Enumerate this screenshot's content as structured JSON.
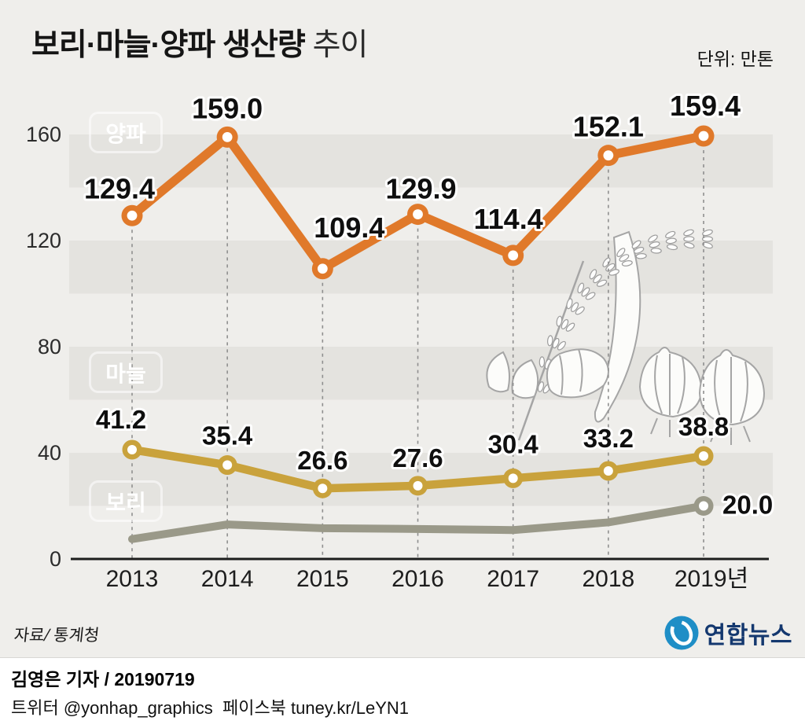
{
  "title": {
    "main": "보리·마늘·양파 생산량",
    "sub": " 추이"
  },
  "meta": {
    "unit_label": "단위: 만톤",
    "source": "자료/ 통계청"
  },
  "chart_data": {
    "type": "line",
    "x": [
      2013,
      2014,
      2015,
      2016,
      2017,
      2018,
      2019
    ],
    "x_tick_labels": [
      "2013",
      "2014",
      "2015",
      "2016",
      "2017",
      "2018",
      "2019년"
    ],
    "y_ticks": [
      0,
      40,
      80,
      120,
      160
    ],
    "ylim": [
      0,
      175
    ],
    "grid": "dashed vertical line per year; alternating horizontal 20-unit background bands",
    "legend_position": "colored chips at left, one beside each series",
    "series": [
      {
        "name": "양파",
        "color": "#E0792A",
        "values": [
          129.4,
          159.0,
          109.4,
          129.9,
          114.4,
          152.1,
          159.4
        ],
        "value_labels": [
          "129.4",
          "159.0",
          "109.4",
          "129.9",
          "114.4",
          "152.1",
          "159.4"
        ],
        "label_dx": [
          -16,
          0,
          34,
          4,
          -6,
          0,
          2
        ],
        "label_dy": [
          -22,
          -24,
          -40,
          -20,
          -34,
          -24,
          -26
        ]
      },
      {
        "name": "마늘",
        "color": "#C9A23C",
        "values": [
          41.2,
          35.4,
          26.6,
          27.6,
          30.4,
          33.2,
          38.8
        ],
        "value_labels": [
          "41.2",
          "35.4",
          "26.6",
          "27.6",
          "30.4",
          "33.2",
          "38.8"
        ],
        "label_dx": [
          -14,
          0,
          0,
          0,
          0,
          0,
          0
        ],
        "label_dy": [
          -27,
          -26,
          -24,
          -24,
          -32,
          -30,
          -26
        ]
      },
      {
        "name": "보리",
        "color": "#9A9989",
        "values": [
          7.5,
          13.0,
          11.6,
          11.3,
          10.9,
          13.8,
          20.0
        ],
        "value_labels": [
          null,
          null,
          null,
          null,
          null,
          null,
          "20.0"
        ],
        "note": "only the 2019 value (20.0) is labeled in the graphic; earlier values estimated from line position",
        "marker_last_only": true,
        "label_dx": [
          0,
          0,
          0,
          0,
          0,
          0,
          24
        ],
        "label_dy": [
          0,
          0,
          0,
          0,
          0,
          0,
          10
        ]
      }
    ]
  },
  "footer": {
    "credit": "김영은 기자 / 20190719",
    "social": "트위터 @yonhap_graphics  페이스북 tuney.kr/LeYN1",
    "logo_text": "연합뉴스"
  },
  "colors": {
    "background": "#EFEEEB",
    "band": "#E4E3DF",
    "axis": "#1d1d1d",
    "dashed_grid": "#8f8f8f",
    "value_label": "#0f0f0f",
    "logo_blue": "#1F8EC6",
    "logo_navy": "#14386F"
  }
}
